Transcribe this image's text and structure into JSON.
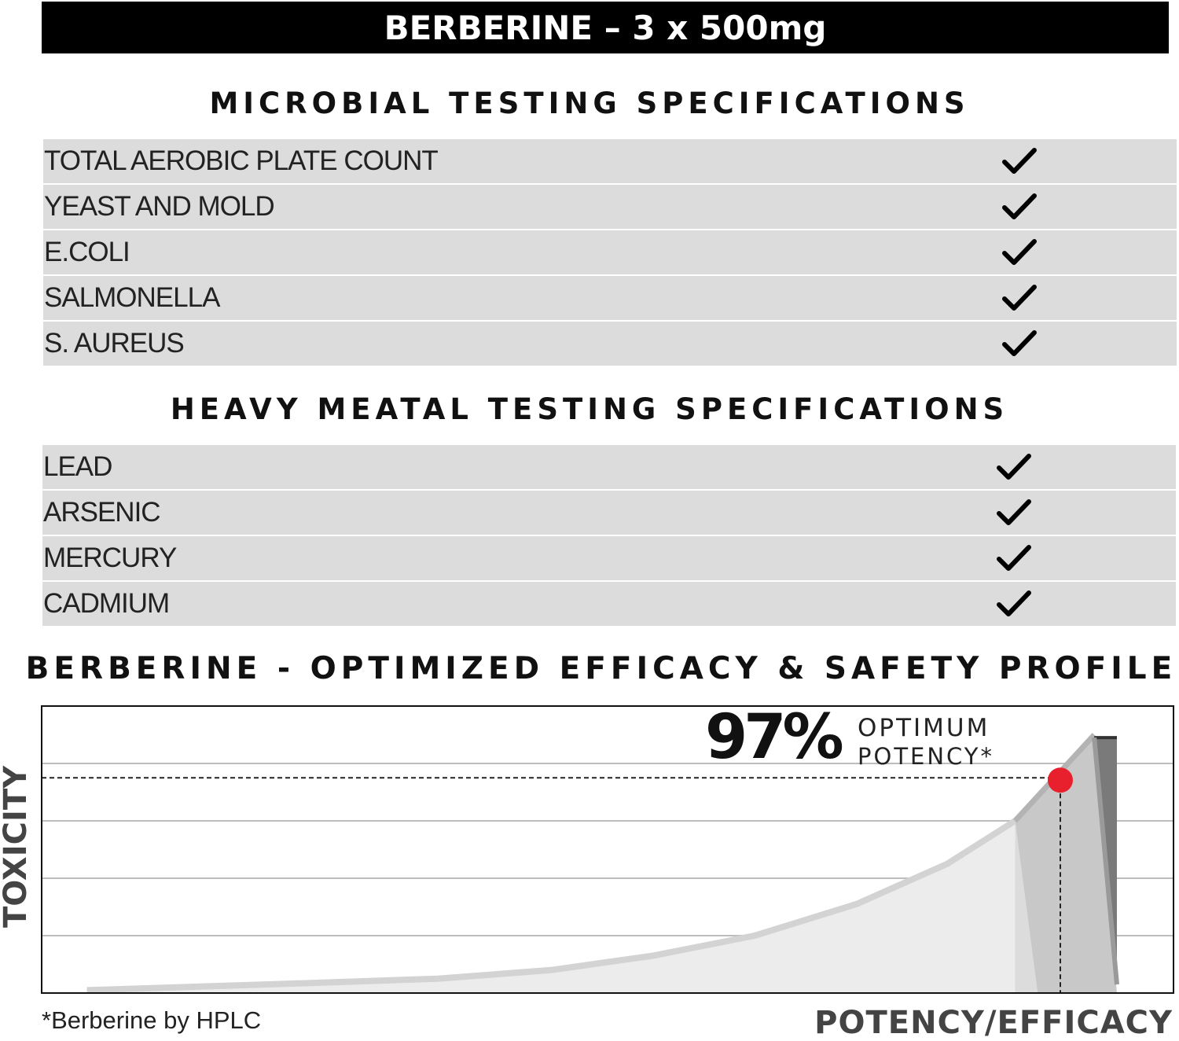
{
  "header": {
    "title": "BERBERINE – 3 x 500mg"
  },
  "microbial": {
    "title": "MICROBIAL TESTING SPECIFICATIONS",
    "items": [
      {
        "label": "TOTAL AEROBIC PLATE COUNT",
        "icon": "check-icon"
      },
      {
        "label": "YEAST AND MOLD",
        "icon": "check-icon"
      },
      {
        "label": "E.COLI",
        "icon": "check-icon"
      },
      {
        "label": "SALMONELLA",
        "icon": "check-icon"
      },
      {
        "label": "S. AUREUS",
        "icon": "check-icon"
      }
    ]
  },
  "heavy_metal": {
    "title": "HEAVY MEATAL TESTING SPECIFICATIONS",
    "items": [
      {
        "label": "LEAD",
        "icon": "check-icon"
      },
      {
        "label": "ARSENIC",
        "icon": "check-icon"
      },
      {
        "label": "MERCURY",
        "icon": "check-icon"
      },
      {
        "label": "CADMIUM",
        "icon": "check-icon"
      }
    ]
  },
  "chart_data": {
    "type": "area",
    "title": "BERBERINE - OPTIMIZED EFFICACY & SAFETY PROFILE",
    "xlabel": "POTENCY/EFFICACY",
    "ylabel": "TOXICITY",
    "xlim": [
      0,
      100
    ],
    "ylim": [
      0,
      100
    ],
    "grid": true,
    "series": [
      {
        "values": [
          [
            4,
            1
          ],
          [
            20,
            3
          ],
          [
            35,
            5
          ],
          [
            45,
            8
          ],
          [
            54,
            13
          ],
          [
            63,
            20
          ],
          [
            72,
            31
          ],
          [
            80,
            45
          ],
          [
            86,
            60
          ]
        ]
      },
      {
        "values": [
          [
            86,
            60
          ],
          [
            90,
            83
          ],
          [
            93,
            90
          ]
        ]
      },
      {
        "values": [
          [
            88,
            0
          ],
          [
            95,
            0
          ],
          [
            95,
            89
          ]
        ]
      }
    ],
    "marker": {
      "x": 90,
      "y": 75,
      "color": "#e8202e"
    },
    "annotation": {
      "value": "97%",
      "label_line1": "OPTIMUM",
      "label_line2": "POTENCY*"
    },
    "footnote": "*Berberine by HPLC"
  }
}
